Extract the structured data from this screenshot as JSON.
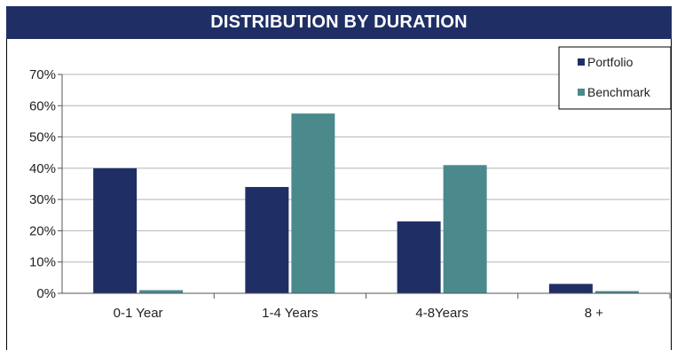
{
  "chart_data": {
    "type": "bar",
    "title": "DISTRIBUTION BY DURATION",
    "categories": [
      "0-1 Year",
      "1-4 Years",
      "4-8Years",
      "8 +"
    ],
    "series": [
      {
        "name": "Portfolio",
        "color": "#1f2f66",
        "values": [
          40,
          34,
          23,
          3
        ]
      },
      {
        "name": "Benchmark",
        "color": "#4a8a8c",
        "values": [
          1,
          57.5,
          41,
          0.7
        ]
      }
    ],
    "y_ticks": [
      "0%",
      "10%",
      "20%",
      "30%",
      "40%",
      "50%",
      "60%",
      "70%"
    ],
    "ylim": [
      0,
      70
    ],
    "grid": true,
    "legend_position": "top-right"
  }
}
